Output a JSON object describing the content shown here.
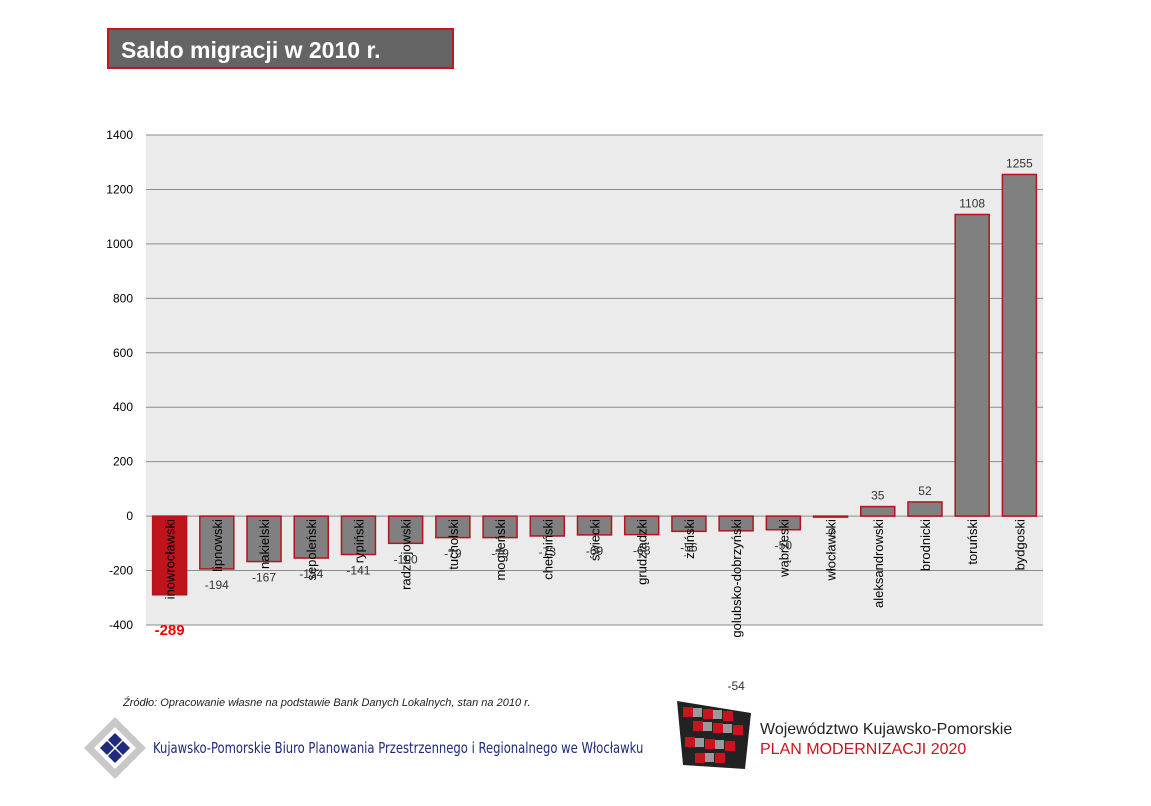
{
  "title": "Saldo migracji w 2010 r.",
  "source_note": "Źródło: Opracowanie własne na podstawie Bank Danych Lokalnych, stan na 2010 r.",
  "footer": {
    "org_name": "Kujawsko-Pomorskie Biuro Planowania  Przestrzennego i Regionalnego we Włocławku",
    "voivodeship": "Województwo Kujawsko-Pomorskie",
    "plan": "PLAN MODERNIZACJI 2020"
  },
  "colors": {
    "bar_fill": "#808080",
    "bar_border": "#b3141e",
    "highlight_fill": "#c0141c",
    "highlight_label": "#ff0000",
    "plot_bg": "#ebebeb",
    "grid": "#8c8c8c",
    "title_bg": "#646464",
    "title_border": "#c8141e"
  },
  "chart_data": {
    "type": "bar",
    "categories": [
      "inowrocławski",
      "lipnowski",
      "nakielski",
      "sępoleński",
      "rypiński",
      "radziejowski",
      "tucholski",
      "mogileński",
      "chełmiński",
      "świecki",
      "grudziądzki",
      "żniński",
      "golubsko-dobrzyński",
      "wąbrzeski",
      "włocławski",
      "aleksandrowski",
      "brodnicki",
      "toruński",
      "bydgoski"
    ],
    "values": [
      -289,
      -194,
      -167,
      -154,
      -141,
      -100,
      -79,
      -79,
      -73,
      -69,
      -68,
      -56,
      -54,
      -50,
      -2,
      35,
      52,
      1108,
      1255
    ],
    "highlight_index": 0,
    "ylim": [
      -400,
      1400
    ],
    "yticks": [
      -400,
      -200,
      0,
      200,
      400,
      600,
      800,
      1000,
      1200,
      1400
    ],
    "grid": true,
    "legend": "none",
    "xlabel": "",
    "ylabel": ""
  }
}
